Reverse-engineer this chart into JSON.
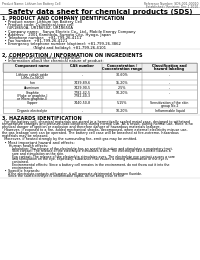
{
  "header_left": "Product Name: Lithium Ion Battery Cell",
  "header_right": "Reference Number: SDS-001-00010\nEstablished / Revision: Dec.1.2010",
  "title": "Safety data sheet for chemical products (SDS)",
  "section1_title": "1. PRODUCT AND COMPANY IDENTIFICATION",
  "section1_lines": [
    "  • Product name: Lithium Ion Battery Cell",
    "  • Product code: Cylindrical-type cell",
    "    (UR18650A, UR18650Z, UR18650A",
    "  • Company name:   Sanyo Electric Co., Ltd., Mobile Energy Company",
    "  • Address:   2001 Kamitoda, Sumoto City, Hyogo, Japan",
    "  • Telephone number:   +81-799-26-4111",
    "  • Fax number:  +81-799-26-4121",
    "  • Emergency telephone number (daytime): +81-799-26-3862",
    "                         (Night and holiday): +81-799-26-4101"
  ],
  "section2_title": "2. COMPOSITION / INFORMATION ON INGREDIENTS",
  "section2_intro": "  • Substance or preparation: Preparation",
  "section2_sub": "  • Information about the chemical nature of product:",
  "table_headers": [
    "Component name",
    "CAS number",
    "Concentration /\nConcentration range",
    "Classification and\nhazard labeling"
  ],
  "table_rows": [
    [
      "Lithium cobalt oxide\n(LiMn-Co-NiO2)",
      "-",
      "30-60%",
      "-"
    ],
    [
      "Iron",
      "7439-89-6",
      "15-20%",
      "-"
    ],
    [
      "Aluminum",
      "7429-90-5",
      "2-5%",
      "-"
    ],
    [
      "Graphite\n(Flake or graphite-I\nor Micro graphite-I)",
      "7782-42-5\n7782-40-3",
      "10-20%",
      "-"
    ],
    [
      "Copper",
      "7440-50-8",
      "5-15%",
      "Sensitization of the skin\ngroup No.2"
    ],
    [
      "Organic electrolyte",
      "-",
      "10-20%",
      "Inflammable liquid"
    ]
  ],
  "section3_title": "3. HAZARDS IDENTIFICATION",
  "section3_para1": "  For the battery cell, chemical materials are stored in a hermetically sealed metal case, designed to withstand",
  "section3_para2": "temperature changes and pressure-load conditions during normal use. As a result, during normal use, there is no",
  "section3_para3": "physical danger of ignition or explosion and therefore danger of hazardous materials leakage.",
  "section3_para4": "  However, if exposed to a fire, added mechanical shocks, decomposed, when external electricity misuse use,",
  "section3_para5": "the gas leakage vent can be operated. The battery cell case will be breached at fire-extreme, hazardous",
  "section3_para6": "materials may be released.",
  "section3_para7": "  Moreover, if heated strongly by the surrounding fire, emit gas may be emitted.",
  "section3_bullet1": "  • Most important hazard and effects:",
  "section3_human": "      Human health effects:",
  "section3_human_lines": [
    "          Inhalation: The release of the electrolyte has an anesthetic action and stimulates a respiratory tract.",
    "          Skin contact: The release of the electrolyte stimulates a skin. The electrolyte skin contact causes a",
    "          sore and stimulation on the skin.",
    "          Eye contact: The release of the electrolyte stimulates eyes. The electrolyte eye contact causes a sore",
    "          and stimulation on the eye. Especially, substance that causes a strong inflammation of the eye is",
    "          contained.",
    "          Environmental effects: Since a battery cell remains in the environment, do not throw out it into the",
    "          environment."
  ],
  "section3_bullet2": "  • Specific hazards:",
  "section3_specific_lines": [
    "      If the electrolyte contacts with water, it will generate detrimental hydrogen fluoride.",
    "      Since the said electrolyte is inflammable liquid, do not bring close to fire."
  ],
  "bg_color": "#ffffff"
}
